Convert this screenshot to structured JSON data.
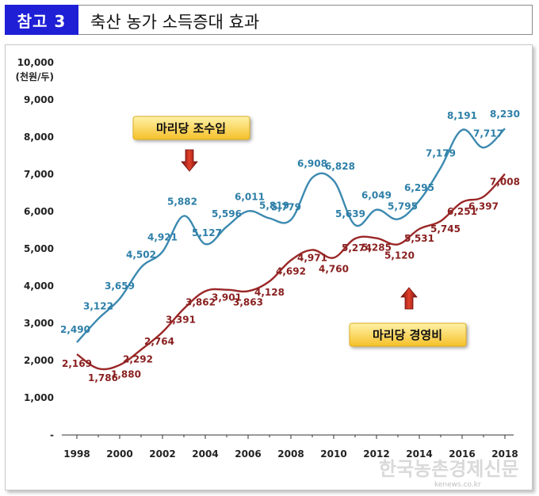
{
  "header": {
    "badge": "참고 3",
    "title": "축산 농가 소득증대 효과"
  },
  "watermark": {
    "main": "한국농촌경제신문",
    "url": "kenews.co.kr"
  },
  "chart_data": {
    "type": "line",
    "unit_label": "(천원/두)",
    "ylim": [
      0,
      10000
    ],
    "ytick_labels": [
      "-",
      "1,000",
      "2,000",
      "3,000",
      "4,000",
      "5,000",
      "6,000",
      "7,000",
      "8,000",
      "9,000",
      "10,000"
    ],
    "xtick_labels": [
      "1998",
      "2000",
      "2002",
      "2004",
      "2006",
      "2008",
      "2010",
      "2012",
      "2014",
      "2016",
      "2018"
    ],
    "grid": false,
    "series": [
      {
        "name": "마리당 조수입",
        "color": "#3c89b0",
        "x": [
          1998,
          1999,
          2000,
          2001,
          2002,
          2003,
          2004,
          2005,
          2006,
          2007,
          2008,
          2009,
          2010,
          2011,
          2012,
          2013,
          2014,
          2015,
          2016,
          2017,
          2018
        ],
        "values": [
          2490,
          3122,
          3659,
          4502,
          4921,
          5882,
          5127,
          5596,
          6011,
          5819,
          5779,
          6908,
          6828,
          5639,
          6049,
          5795,
          6295,
          7179,
          8191,
          7717,
          8230
        ],
        "labels": [
          "2,490",
          "3,122",
          "3,659",
          "4,502",
          "4,921",
          "5,882",
          "5,127",
          "5,596",
          "6,011",
          "5,819",
          "5,779",
          "6,908",
          "6,828",
          "5,639",
          "6,049",
          "5,795",
          "6,295",
          "7,179",
          "8,191",
          "7,717",
          "8,230"
        ]
      },
      {
        "name": "마리당 경영비",
        "color": "#9b2727",
        "x": [
          1998,
          1999,
          2000,
          2001,
          2002,
          2003,
          2004,
          2005,
          2006,
          2007,
          2008,
          2009,
          2010,
          2011,
          2012,
          2013,
          2014,
          2015,
          2016,
          2017,
          2018
        ],
        "values": [
          2169,
          1786,
          1880,
          2292,
          2764,
          3391,
          3862,
          3901,
          3863,
          4128,
          4692,
          4971,
          4760,
          5274,
          5285,
          5120,
          5531,
          5745,
          6251,
          6397,
          7008
        ],
        "labels": [
          "2,169",
          "1,786",
          "1,880",
          "2,292",
          "2,764",
          "3,391",
          "3,862",
          "3,901",
          "3,863",
          "4,128",
          "4,692",
          "4,971",
          "4,760",
          "5,274",
          "5,285",
          "5,120",
          "5,531",
          "5,745",
          "6,251",
          "6,397",
          "7,008"
        ]
      }
    ],
    "annotations": [
      {
        "text": "마리당 조수입",
        "arrow": "down",
        "arrow_color": "#c0281e"
      },
      {
        "text": "마리당 경영비",
        "arrow": "up",
        "arrow_color": "#c0281e"
      }
    ]
  }
}
